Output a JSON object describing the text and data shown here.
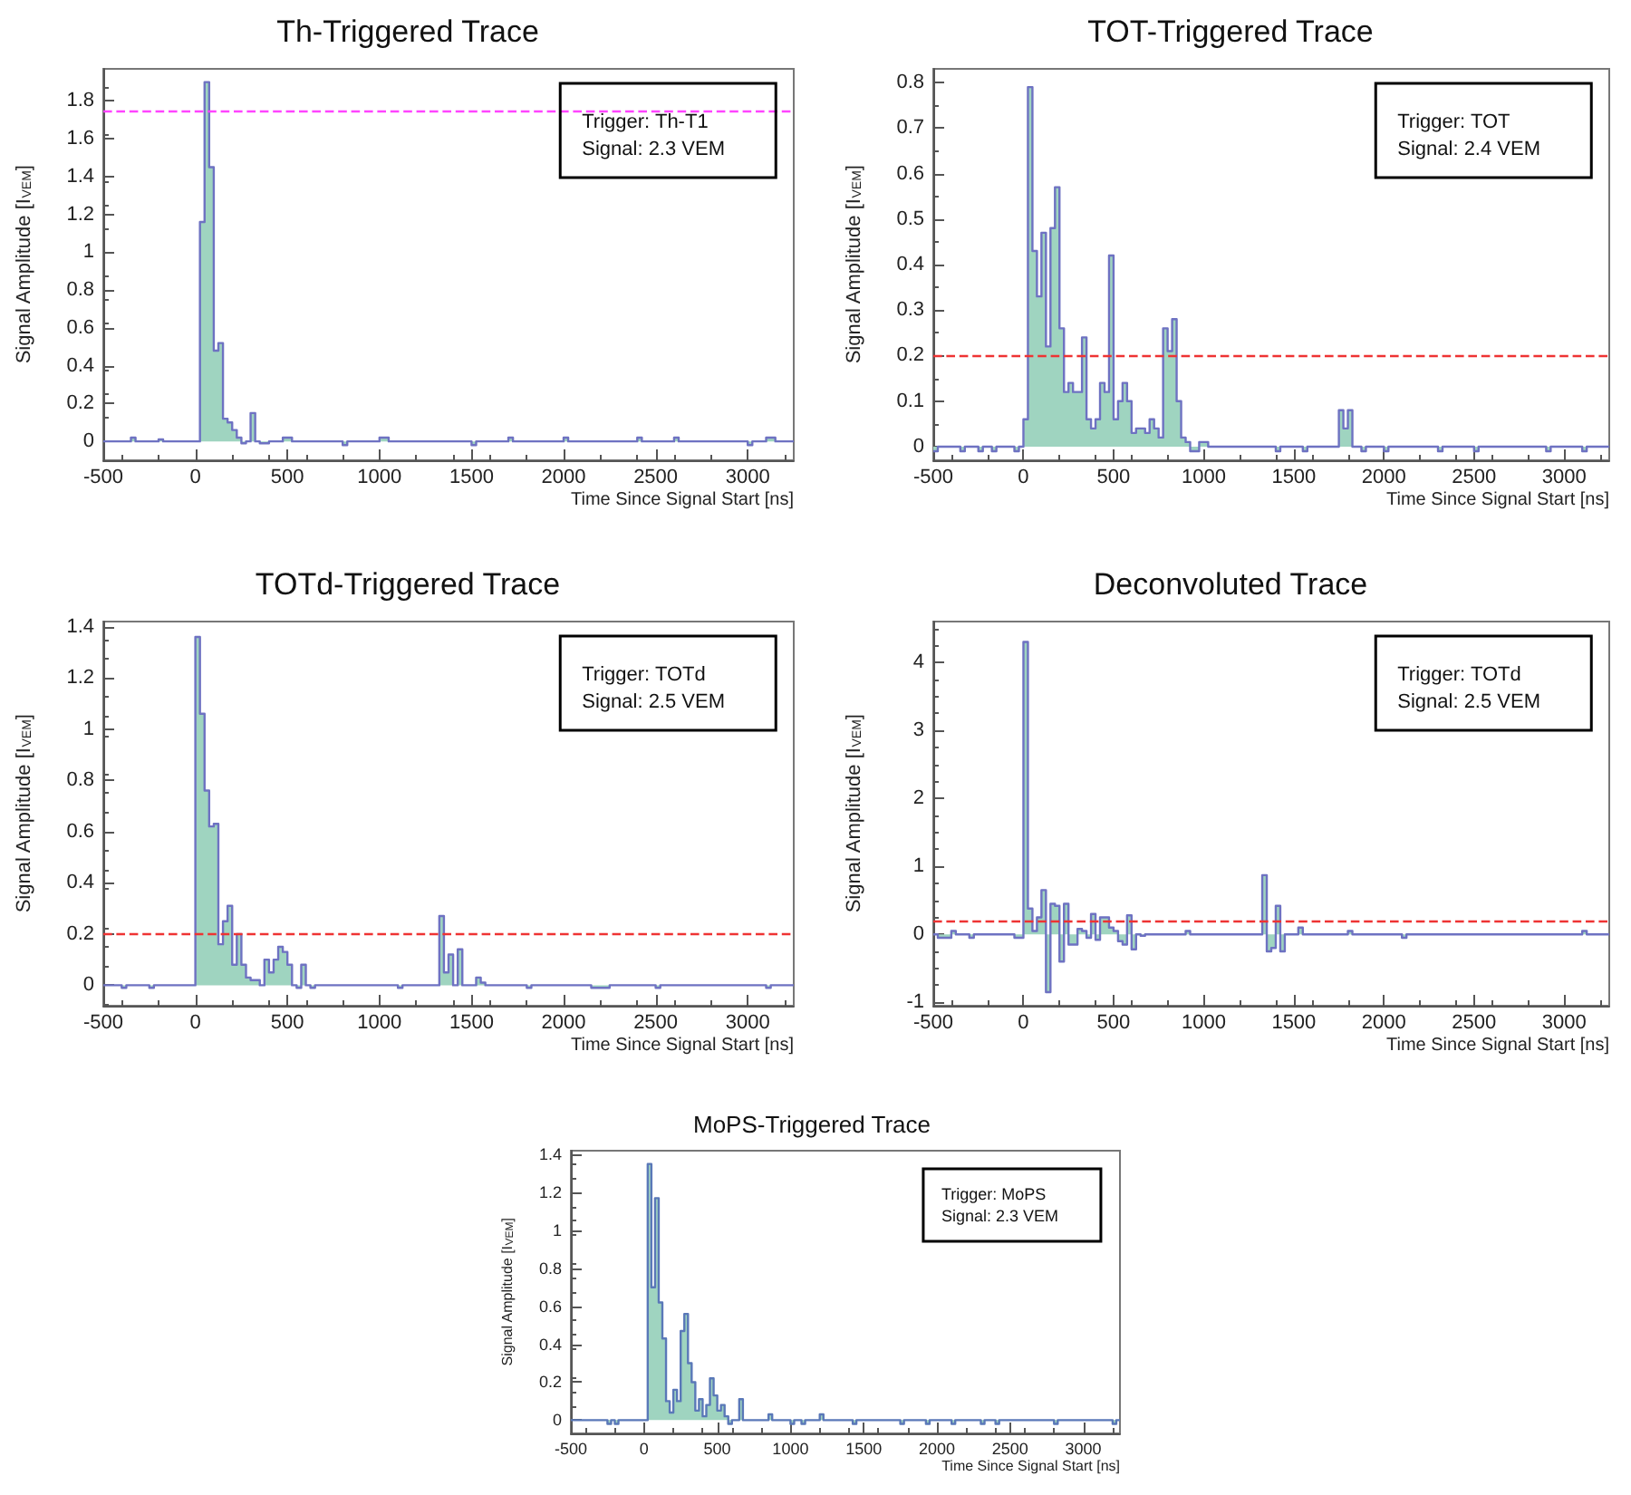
{
  "chart_data": [
    {
      "type": "step",
      "title": "Th-Triggered Trace",
      "xlabel": "Time Since Signal Start [ns]",
      "ylabel": "Signal Amplitude [I$_{VEM}$]",
      "xlim": [
        -500,
        3250
      ],
      "xticks": [
        -500,
        0,
        500,
        1000,
        1500,
        2000,
        2500,
        3000
      ],
      "ylim": [
        -0.1,
        1.97
      ],
      "yticks": [
        0,
        0.2,
        0.4,
        0.6,
        0.8,
        1,
        1.2,
        1.4,
        1.6,
        1.8
      ],
      "annotations": [
        "Trigger: Th-T1",
        "Signal: 2.3 VEM"
      ],
      "ref_lines": [
        {
          "axis": "y",
          "value": 1.75,
          "color": "#ff44ff",
          "line_style": "dashed"
        }
      ],
      "series": [
        {
          "color": "#6e72c2",
          "x": [
            -500,
            -350,
            -325,
            -200,
            -175,
            0,
            25,
            50,
            75,
            100,
            125,
            150,
            175,
            200,
            225,
            250,
            275,
            300,
            325,
            350,
            400,
            475,
            525,
            800,
            825,
            1000,
            1050,
            1500,
            1525,
            1700,
            1725,
            2000,
            2025,
            2400,
            2425,
            2600,
            2625,
            3000,
            3025,
            3100,
            3150,
            3250
          ],
          "values": [
            0,
            0.02,
            0,
            0.01,
            0,
            0,
            1.16,
            1.9,
            1.45,
            0.48,
            0.52,
            0.12,
            0.1,
            0.06,
            0.02,
            -0.01,
            0,
            0.15,
            0,
            -0.01,
            0,
            0.02,
            0,
            -0.02,
            0,
            0.02,
            0,
            -0.02,
            0,
            0.02,
            0,
            0.02,
            0,
            0.02,
            0,
            0.02,
            0,
            -0.02,
            0,
            0.02,
            0,
            0
          ]
        }
      ]
    },
    {
      "type": "step",
      "title": "TOT-Triggered Trace",
      "xlabel": "Time Since Signal Start [ns]",
      "ylabel": "Signal Amplitude [I$_{VEM}$]",
      "xlim": [
        -500,
        3250
      ],
      "xticks": [
        -500,
        0,
        500,
        1000,
        1500,
        2000,
        2500,
        3000
      ],
      "ylim": [
        -0.03,
        0.83
      ],
      "yticks": [
        0,
        0.1,
        0.2,
        0.3,
        0.4,
        0.5,
        0.6,
        0.7,
        0.8
      ],
      "annotations": [
        "Trigger: TOT",
        "Signal: 2.4 VEM"
      ],
      "ref_lines": [
        {
          "axis": "y",
          "value": 0.2,
          "color": "#ee3333",
          "line_style": "dashed"
        }
      ],
      "series": [
        {
          "color": "#6e72c2",
          "x": [
            -500,
            -475,
            -450,
            -350,
            -325,
            -250,
            -225,
            -175,
            -150,
            -50,
            -25,
            0,
            25,
            50,
            75,
            100,
            125,
            150,
            175,
            200,
            225,
            250,
            275,
            300,
            325,
            350,
            375,
            400,
            425,
            450,
            475,
            500,
            525,
            550,
            575,
            600,
            625,
            650,
            675,
            700,
            725,
            750,
            775,
            800,
            825,
            850,
            875,
            900,
            925,
            975,
            1025,
            1050,
            1400,
            1425,
            1550,
            1575,
            1725,
            1750,
            1775,
            1800,
            1825,
            1875,
            1900,
            2000,
            2025,
            2300,
            2325,
            2500,
            2525,
            2900,
            2925,
            3100,
            3125,
            3250
          ],
          "values": [
            -0.01,
            0,
            0,
            -0.01,
            0,
            -0.01,
            0,
            -0.01,
            0,
            -0.01,
            0,
            0.06,
            0.79,
            0.43,
            0.33,
            0.47,
            0.22,
            0.48,
            0.57,
            0.26,
            0.12,
            0.14,
            0.12,
            0.12,
            0.24,
            0.06,
            0.04,
            0.06,
            0.14,
            0.12,
            0.42,
            0.06,
            0.1,
            0.14,
            0.1,
            0.03,
            0.04,
            0.04,
            0.03,
            0.06,
            0.04,
            0.02,
            0.26,
            0.21,
            0.28,
            0.1,
            0.02,
            0.01,
            -0.01,
            0.01,
            0,
            0,
            -0.01,
            0,
            -0.01,
            0,
            0,
            0.08,
            0.04,
            0.08,
            0,
            -0.01,
            0,
            -0.01,
            0,
            -0.01,
            0,
            -0.01,
            0,
            -0.01,
            0,
            -0.01,
            0,
            0
          ]
        }
      ]
    },
    {
      "type": "step",
      "title": "TOTd-Triggered Trace",
      "xlabel": "Time Since Signal Start [ns]",
      "ylabel": "Signal Amplitude [I$_{VEM}$]",
      "xlim": [
        -500,
        3250
      ],
      "xticks": [
        -500,
        0,
        500,
        1000,
        1500,
        2000,
        2500,
        3000
      ],
      "ylim": [
        -0.08,
        1.42
      ],
      "yticks": [
        0,
        0.2,
        0.4,
        0.6,
        0.8,
        1,
        1.2,
        1.4
      ],
      "annotations": [
        "Trigger: TOTd",
        "Signal: 2.5 VEM"
      ],
      "ref_lines": [
        {
          "axis": "y",
          "value": 0.2,
          "color": "#ee3333",
          "line_style": "dashed"
        }
      ],
      "series": [
        {
          "color": "#6e72c2",
          "x": [
            -500,
            -400,
            -375,
            -250,
            -225,
            0,
            25,
            50,
            75,
            100,
            125,
            150,
            175,
            200,
            225,
            250,
            275,
            300,
            325,
            350,
            375,
            400,
            425,
            450,
            475,
            500,
            525,
            550,
            575,
            600,
            625,
            650,
            1100,
            1125,
            1325,
            1350,
            1375,
            1400,
            1425,
            1450,
            1525,
            1550,
            1575,
            1800,
            1825,
            2150,
            2250,
            2500,
            2525,
            3100,
            3125,
            3250
          ],
          "values": [
            0,
            -0.01,
            0,
            -0.01,
            0,
            1.36,
            1.06,
            0.76,
            0.62,
            0.63,
            0.16,
            0.25,
            0.31,
            0.08,
            0.2,
            0.08,
            0.03,
            0.02,
            0.02,
            0,
            0.1,
            0.05,
            0.1,
            0.15,
            0.13,
            0.08,
            0,
            -0.01,
            0.08,
            0,
            -0.01,
            0,
            -0.01,
            0,
            0.27,
            0.05,
            0.12,
            0,
            0.14,
            0,
            0.03,
            0.01,
            0,
            -0.01,
            0,
            -0.01,
            0,
            -0.01,
            0,
            -0.01,
            0,
            0
          ]
        }
      ]
    },
    {
      "type": "step",
      "title": "Deconvoluted Trace",
      "xlabel": "Time Since Signal Start [ns]",
      "ylabel": "Signal Amplitude [I$_{VEM}$]",
      "xlim": [
        -500,
        3250
      ],
      "xticks": [
        -500,
        0,
        500,
        1000,
        1500,
        2000,
        2500,
        3000
      ],
      "ylim": [
        -1.05,
        4.6
      ],
      "yticks": [
        -1,
        0,
        1,
        2,
        3,
        4
      ],
      "annotations": [
        "Trigger: TOTd",
        "Signal: 2.5 VEM"
      ],
      "ref_lines": [
        {
          "axis": "y",
          "value": 0.2,
          "color": "#ee3333",
          "line_style": "dashed"
        }
      ],
      "series": [
        {
          "color": "#6e72c2",
          "x": [
            -500,
            -475,
            -400,
            -375,
            -300,
            -275,
            -50,
            0,
            25,
            50,
            75,
            100,
            125,
            150,
            175,
            200,
            225,
            250,
            275,
            300,
            325,
            350,
            375,
            400,
            425,
            450,
            475,
            500,
            525,
            550,
            575,
            600,
            625,
            650,
            675,
            900,
            925,
            1325,
            1350,
            1375,
            1400,
            1425,
            1450,
            1525,
            1550,
            1800,
            1825,
            2100,
            2125,
            3100,
            3125,
            3250
          ],
          "values": [
            0,
            -0.05,
            0.05,
            0,
            -0.05,
            0,
            -0.05,
            4.3,
            0.38,
            0.05,
            0.25,
            0.65,
            -0.85,
            0.45,
            0.42,
            -0.4,
            0.45,
            -0.15,
            -0.15,
            0.08,
            0.05,
            -0.05,
            0.3,
            -0.08,
            0.25,
            0.25,
            0.1,
            0.05,
            -0.1,
            -0.15,
            0.28,
            -0.22,
            0,
            -0.02,
            0,
            0.05,
            0,
            0.87,
            -0.25,
            -0.2,
            0.42,
            -0.25,
            0,
            0.1,
            0,
            0.05,
            0,
            -0.05,
            0,
            0.05,
            0,
            0
          ]
        }
      ]
    },
    {
      "type": "step",
      "title": "MoPS-Triggered Trace",
      "xlabel": "Time Since Signal Start [ns]",
      "ylabel": "Signal Amplitude [I$_{VEM}$]",
      "xlim": [
        -500,
        3250
      ],
      "xticks": [
        -500,
        0,
        500,
        1000,
        1500,
        2000,
        2500,
        3000
      ],
      "ylim": [
        -0.07,
        1.42
      ],
      "yticks": [
        0,
        0.2,
        0.4,
        0.6,
        0.8,
        1,
        1.2,
        1.4
      ],
      "annotations": [
        "Trigger: MoPS",
        "Signal: 2.3 VEM"
      ],
      "series": [
        {
          "color": "#5a78b8",
          "x": [
            -500,
            -250,
            -225,
            -200,
            -175,
            0,
            25,
            50,
            75,
            100,
            125,
            150,
            175,
            200,
            225,
            250,
            275,
            300,
            325,
            350,
            375,
            400,
            425,
            450,
            475,
            500,
            525,
            550,
            575,
            600,
            650,
            675,
            850,
            875,
            1000,
            1025,
            1075,
            1100,
            1200,
            1225,
            1425,
            1450,
            1750,
            1775,
            1925,
            1950,
            2100,
            2125,
            2300,
            2325,
            2400,
            2425,
            2800,
            2825,
            3200,
            3225,
            3250
          ],
          "values": [
            0,
            -0.02,
            0,
            -0.02,
            0,
            0,
            1.35,
            0.7,
            1.17,
            0.62,
            0.43,
            0.1,
            0.04,
            0.16,
            0.1,
            0.47,
            0.56,
            0.3,
            0.2,
            0.05,
            0.11,
            0.02,
            0.08,
            0.22,
            0.13,
            0.05,
            0.08,
            0.02,
            -0.02,
            0,
            0.11,
            0,
            0.03,
            0,
            -0.02,
            0,
            -0.02,
            0,
            0.03,
            0,
            -0.02,
            0,
            -0.02,
            0,
            -0.02,
            0,
            -0.02,
            0,
            -0.02,
            0,
            -0.02,
            0,
            -0.02,
            0,
            -0.02,
            0,
            0
          ]
        }
      ]
    }
  ]
}
